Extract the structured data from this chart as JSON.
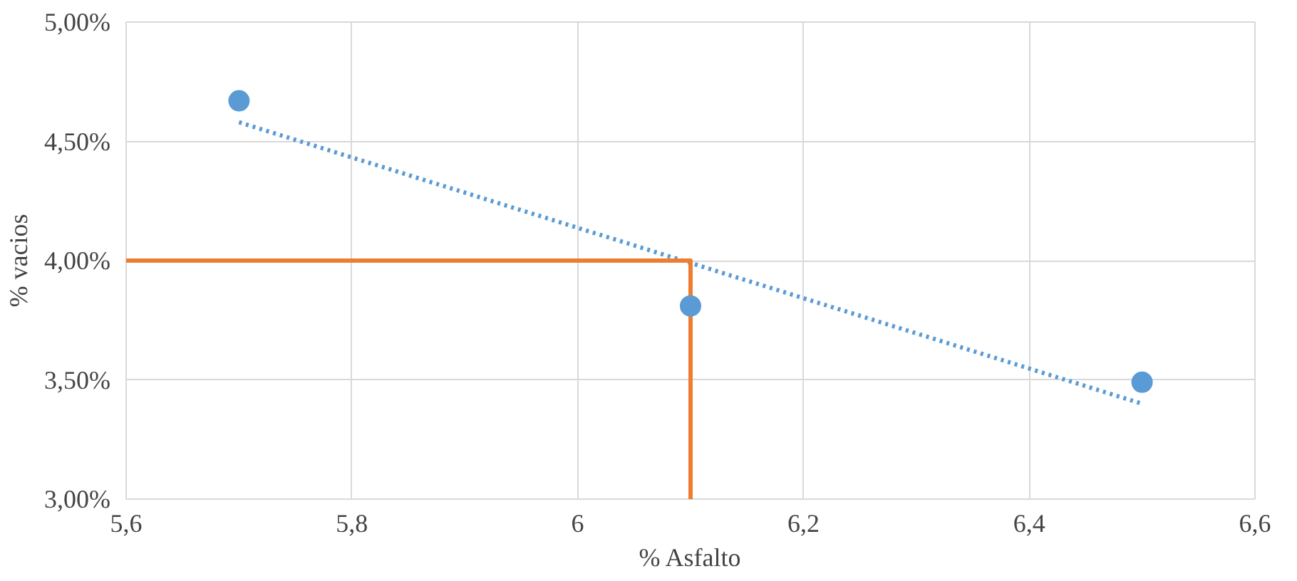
{
  "chart_data": {
    "type": "scatter",
    "xlabel": "% Asfalto",
    "ylabel": "% vacios",
    "xlim": [
      5.6,
      6.6
    ],
    "ylim": [
      3.0,
      5.0
    ],
    "xticks": [
      {
        "value": 5.6,
        "label": "5,6"
      },
      {
        "value": 5.8,
        "label": "5,8"
      },
      {
        "value": 6,
        "label": "6"
      },
      {
        "value": 6.2,
        "label": "6,2"
      },
      {
        "value": 6.4,
        "label": "6,4"
      },
      {
        "value": 6.6,
        "label": "6,6"
      }
    ],
    "yticks": [
      {
        "value": 3.0,
        "label": "3,00%"
      },
      {
        "value": 3.5,
        "label": "3,50%"
      },
      {
        "value": 4.0,
        "label": "4,00%"
      },
      {
        "value": 4.5,
        "label": "4,50%"
      },
      {
        "value": 5.0,
        "label": "5,00%"
      }
    ],
    "grid": true,
    "series": [
      {
        "type": "line",
        "line_style": "dotted",
        "color": "#5b9bd5",
        "x": [
          5.7,
          6.5
        ],
        "values": [
          4.58,
          3.4
        ]
      },
      {
        "type": "line",
        "line_style": "solid",
        "color": "#ed7d31",
        "x": [
          5.6,
          6.1,
          6.1
        ],
        "values": [
          4.0,
          4.0,
          3.0
        ]
      },
      {
        "marker": "circle",
        "color": "#5b9bd5",
        "x": [
          5.7,
          6.1,
          6.5
        ],
        "values": [
          4.67,
          3.81,
          3.49
        ]
      }
    ]
  }
}
